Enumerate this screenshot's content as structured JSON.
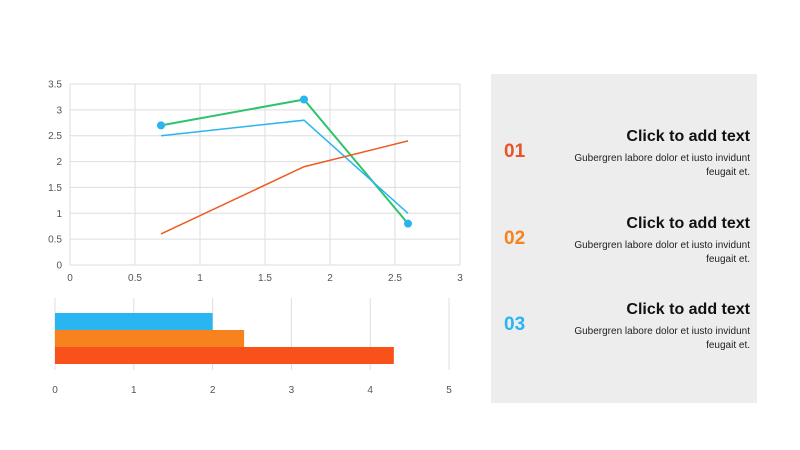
{
  "chart_data": [
    {
      "type": "line",
      "xlim": [
        0,
        3
      ],
      "ylim": [
        0,
        3.5
      ],
      "x_ticks": [
        "0",
        "0.5",
        "1",
        "1.5",
        "2",
        "2.5",
        "3"
      ],
      "y_ticks": [
        "0",
        "0.5",
        "1",
        "1.5",
        "2",
        "2.5",
        "3",
        "3.5"
      ],
      "grid": true,
      "series": [
        {
          "color": "#2ec36f",
          "points": [
            [
              0.7,
              2.7
            ],
            [
              1.8,
              3.2
            ],
            [
              2.6,
              0.8
            ]
          ],
          "markers": true
        },
        {
          "color": "#29b5f0",
          "points": [
            [
              0.7,
              2.5
            ],
            [
              1.8,
              2.8
            ],
            [
              2.6,
              1.0
            ]
          ],
          "markers": false
        },
        {
          "color": "#f05a22",
          "points": [
            [
              0.7,
              0.6
            ],
            [
              1.8,
              1.9
            ],
            [
              2.6,
              2.4
            ]
          ],
          "markers": false
        }
      ],
      "markers": [
        {
          "x": 0.7,
          "y": 2.7,
          "color": "#29b5f0"
        },
        {
          "x": 1.8,
          "y": 3.2,
          "color": "#29b5f0"
        },
        {
          "x": 2.6,
          "y": 0.8,
          "color": "#29b5f0"
        }
      ]
    },
    {
      "type": "bar",
      "orientation": "horizontal",
      "xlim": [
        0,
        5
      ],
      "x_ticks": [
        "0",
        "1",
        "2",
        "3",
        "4",
        "5"
      ],
      "grid": true,
      "series": [
        {
          "color": "#29b5f0",
          "value": 2.0
        },
        {
          "color": "#f7821e",
          "value": 2.4
        },
        {
          "color": "#f8521a",
          "value": 4.3
        }
      ]
    }
  ],
  "items": [
    {
      "number": "01",
      "title": "Click to add text",
      "body": "Gubergren labore dolor et iusto invidunt feugait et.",
      "color": "#e8542a"
    },
    {
      "number": "02",
      "title": "Click to add text",
      "body": "Gubergren labore dolor et iusto invidunt feugait et.",
      "color": "#f7821e"
    },
    {
      "number": "03",
      "title": "Click to add text",
      "body": "Gubergren labore dolor et iusto invidunt feugait et.",
      "color": "#29b5f0"
    }
  ]
}
